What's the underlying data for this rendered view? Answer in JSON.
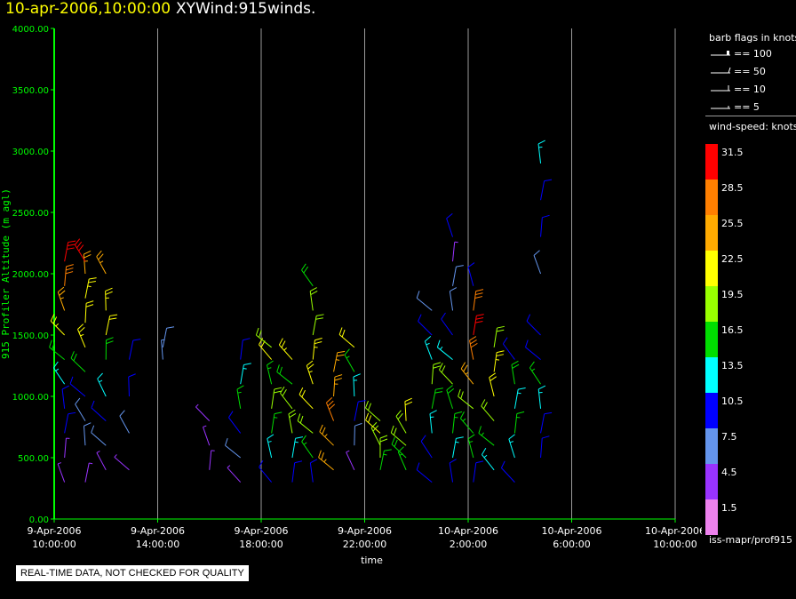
{
  "header": {
    "date_time": "10-apr-2006,10:00:00",
    "plot_name": "XYWind:915winds."
  },
  "chart_data": {
    "type": "wind-barb",
    "ylabel": "915 Profiler Altitude (m agl)",
    "xlabel": "time",
    "ylim": [
      0,
      4000
    ],
    "y_ticks": [
      "0.00",
      "500.00",
      "1000.00",
      "1500.00",
      "2000.00",
      "2500.00",
      "3000.00",
      "3500.00",
      "4000.00"
    ],
    "x_ticks": [
      {
        "date": "9-Apr-2006",
        "time": "10:00:00"
      },
      {
        "date": "9-Apr-2006",
        "time": "14:00:00"
      },
      {
        "date": "9-Apr-2006",
        "time": "18:00:00"
      },
      {
        "date": "9-Apr-2006",
        "time": "22:00:00"
      },
      {
        "date": "10-Apr-2006",
        "time": "2:00:00"
      },
      {
        "date": "10-Apr-2006",
        "time": "6:00:00"
      },
      {
        "date": "10-Apr-2006",
        "time": "10:00:00"
      }
    ],
    "x_range_hours": [
      0,
      24
    ],
    "grid": "vertical lines at each time tick",
    "data_columns": [
      {
        "t": 0.4,
        "heights": [
          300,
          500,
          700,
          900,
          1100,
          1300,
          1500,
          1700,
          1900,
          2100
        ],
        "speeds": [
          4,
          6,
          10,
          12,
          14,
          18,
          24,
          26,
          30,
          32
        ]
      },
      {
        "t": 1.2,
        "heights": [
          300,
          600,
          800,
          1000,
          1200,
          1400,
          1600,
          1800,
          2000,
          2100
        ],
        "speeds": [
          5,
          8,
          9,
          12,
          18,
          23,
          22,
          24,
          26,
          32
        ]
      },
      {
        "t": 2.0,
        "heights": [
          400,
          600,
          800,
          1000,
          1300,
          1500,
          1700,
          2000
        ],
        "speeds": [
          6,
          8,
          12,
          14,
          18,
          22,
          24,
          26
        ]
      },
      {
        "t": 2.9,
        "heights": [
          400,
          700,
          1000,
          1300
        ],
        "speeds": [
          6,
          9,
          12,
          11
        ]
      },
      {
        "t": 4.2,
        "heights": [
          1300,
          1400
        ],
        "speeds": [
          7,
          8
        ]
      },
      {
        "t": 6.0,
        "heights": [
          400,
          600,
          800
        ],
        "speeds": [
          4,
          5,
          6
        ]
      },
      {
        "t": 7.2,
        "heights": [
          300,
          500,
          700,
          900,
          1100,
          1300
        ],
        "speeds": [
          4,
          8,
          12,
          16,
          13,
          11
        ]
      },
      {
        "t": 8.4,
        "heights": [
          300,
          500,
          700,
          900,
          1100,
          1300,
          1400
        ],
        "speeds": [
          10,
          14,
          17,
          19,
          17,
          22,
          20
        ]
      },
      {
        "t": 9.2,
        "heights": [
          300,
          500,
          700,
          900,
          1100,
          1300
        ],
        "speeds": [
          11,
          15,
          19,
          21,
          18,
          23
        ]
      },
      {
        "t": 10.0,
        "heights": [
          300,
          500,
          700,
          900,
          1100,
          1300,
          1500,
          1700,
          1900
        ],
        "speeds": [
          12,
          17,
          20,
          22,
          24,
          23,
          21,
          20,
          18
        ]
      },
      {
        "t": 10.8,
        "heights": [
          400,
          600,
          800,
          1000,
          1200
        ],
        "speeds": [
          25,
          27,
          28,
          27,
          26
        ]
      },
      {
        "t": 11.6,
        "heights": [
          400,
          600,
          800,
          1000,
          1200,
          1400
        ],
        "speeds": [
          4,
          8,
          12,
          14,
          16,
          22
        ]
      },
      {
        "t": 12.6,
        "heights": [
          400,
          500,
          600,
          700,
          800
        ],
        "speeds": [
          17,
          19,
          20,
          22,
          21
        ]
      },
      {
        "t": 13.6,
        "heights": [
          400,
          500,
          600,
          700,
          800
        ],
        "speeds": [
          16,
          18,
          19,
          20,
          22
        ]
      },
      {
        "t": 14.6,
        "heights": [
          300,
          500,
          700,
          900,
          1100,
          1300,
          1500,
          1700
        ],
        "speeds": [
          10,
          12,
          14,
          18,
          20,
          14,
          11,
          8
        ]
      },
      {
        "t": 15.4,
        "heights": [
          300,
          500,
          700,
          900,
          1100,
          1300,
          1500,
          1700,
          1900,
          2100,
          2300
        ],
        "speeds": [
          11,
          14,
          16,
          18,
          20,
          13,
          11,
          9,
          8,
          6,
          11
        ]
      },
      {
        "t": 16.2,
        "heights": [
          300,
          500,
          700,
          900,
          1100,
          1300,
          1500,
          1700,
          1900
        ],
        "speeds": [
          12,
          16,
          17,
          19,
          26,
          28,
          31,
          30,
          12
        ]
      },
      {
        "t": 17.0,
        "heights": [
          400,
          600,
          800,
          1000,
          1200,
          1400
        ],
        "speeds": [
          14,
          17,
          19,
          22,
          24,
          20
        ]
      },
      {
        "t": 17.8,
        "heights": [
          300,
          500,
          700,
          900,
          1100,
          1300
        ],
        "speeds": [
          11,
          14,
          16,
          15,
          18,
          12
        ]
      },
      {
        "t": 18.8,
        "heights": [
          500,
          700,
          900,
          1100,
          1300,
          1500,
          2000,
          2300,
          2600,
          2900
        ],
        "speeds": [
          11,
          12,
          14,
          16,
          10,
          11,
          8,
          10,
          12,
          13
        ]
      }
    ],
    "barb_legend": {
      "title": "barb flags in knots",
      "entries": [
        "== 100",
        "== 50",
        "== 10",
        "== 5"
      ]
    },
    "color_legend": {
      "title": "wind-speed: knots",
      "bins": [
        {
          "label": "31.5",
          "color": "#ff0000"
        },
        {
          "label": "28.5",
          "color": "#ff7f00"
        },
        {
          "label": "25.5",
          "color": "#ffaa00"
        },
        {
          "label": "22.5",
          "color": "#ffff00"
        },
        {
          "label": "19.5",
          "color": "#99ff00"
        },
        {
          "label": "16.5",
          "color": "#00dd00"
        },
        {
          "label": "13.5",
          "color": "#00ffff"
        },
        {
          "label": "10.5",
          "color": "#0000ff"
        },
        {
          "label": "7.5",
          "color": "#6495ed"
        },
        {
          "label": "4.5",
          "color": "#9933ff"
        },
        {
          "label": "1.5",
          "color": "#ee82ee"
        }
      ]
    },
    "colors": {
      "axis": "#00ff00",
      "grid": "#9a9a9a",
      "background": "#000000"
    }
  },
  "footer": {
    "source": "iss-mapr/prof915",
    "qc_note": "REAL-TIME DATA, NOT CHECKED FOR QUALITY"
  }
}
